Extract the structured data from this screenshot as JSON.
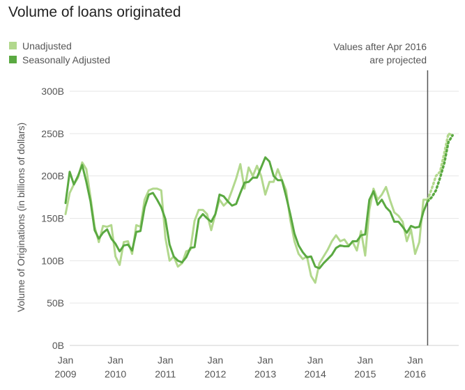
{
  "chart_data": {
    "type": "line",
    "title": "Volume of loans originated",
    "ylabel": "Volume of Originations (in billions of dollars)",
    "xlabel": "",
    "ylim": [
      0,
      300
    ],
    "y_ticks": [
      0,
      50,
      100,
      150,
      200,
      250,
      300
    ],
    "y_tick_labels": [
      "0B",
      "50B",
      "100B",
      "150B",
      "200B",
      "250B",
      "300B"
    ],
    "x_ticks": [
      {
        "date": "2009-01",
        "line1": "Jan",
        "line2": "2009"
      },
      {
        "date": "2010-01",
        "line1": "Jan",
        "line2": "2010"
      },
      {
        "date": "2011-01",
        "line1": "Jan",
        "line2": "2011"
      },
      {
        "date": "2012-01",
        "line1": "Jan",
        "line2": "2012"
      },
      {
        "date": "2013-01",
        "line1": "Jan",
        "line2": "2013"
      },
      {
        "date": "2014-01",
        "line1": "Jan",
        "line2": "2014"
      },
      {
        "date": "2015-01",
        "line1": "Jan",
        "line2": "2015"
      },
      {
        "date": "2016-01",
        "line1": "Jan",
        "line2": "2016"
      }
    ],
    "x_start": "2009-01",
    "x_end": "2016-10",
    "grid": "horizontal",
    "legend_position": "top-left",
    "projection": {
      "date": "2016-04",
      "label_line1": "Values after Apr 2016",
      "label_line2": "are projected"
    },
    "series": [
      {
        "name": "Unadjusted",
        "color": "#b2d88d",
        "values": [
          {
            "date": "2009-01",
            "value": 155
          },
          {
            "date": "2009-02",
            "value": 180
          },
          {
            "date": "2009-03",
            "value": 190
          },
          {
            "date": "2009-04",
            "value": 198
          },
          {
            "date": "2009-05",
            "value": 216
          },
          {
            "date": "2009-06",
            "value": 208
          },
          {
            "date": "2009-07",
            "value": 175
          },
          {
            "date": "2009-08",
            "value": 140
          },
          {
            "date": "2009-09",
            "value": 122
          },
          {
            "date": "2009-10",
            "value": 141
          },
          {
            "date": "2009-11",
            "value": 140
          },
          {
            "date": "2009-12",
            "value": 142
          },
          {
            "date": "2010-01",
            "value": 105
          },
          {
            "date": "2010-02",
            "value": 95
          },
          {
            "date": "2010-03",
            "value": 122
          },
          {
            "date": "2010-04",
            "value": 123
          },
          {
            "date": "2010-05",
            "value": 108
          },
          {
            "date": "2010-06",
            "value": 142
          },
          {
            "date": "2010-07",
            "value": 140
          },
          {
            "date": "2010-08",
            "value": 172
          },
          {
            "date": "2010-09",
            "value": 183
          },
          {
            "date": "2010-10",
            "value": 185
          },
          {
            "date": "2010-11",
            "value": 185
          },
          {
            "date": "2010-12",
            "value": 183
          },
          {
            "date": "2011-01",
            "value": 127
          },
          {
            "date": "2011-02",
            "value": 100
          },
          {
            "date": "2011-03",
            "value": 105
          },
          {
            "date": "2011-04",
            "value": 93
          },
          {
            "date": "2011-05",
            "value": 97
          },
          {
            "date": "2011-06",
            "value": 111
          },
          {
            "date": "2011-07",
            "value": 113
          },
          {
            "date": "2011-08",
            "value": 147
          },
          {
            "date": "2011-09",
            "value": 160
          },
          {
            "date": "2011-10",
            "value": 160
          },
          {
            "date": "2011-11",
            "value": 155
          },
          {
            "date": "2011-12",
            "value": 136
          },
          {
            "date": "2012-01",
            "value": 155
          },
          {
            "date": "2012-02",
            "value": 172
          },
          {
            "date": "2012-03",
            "value": 165
          },
          {
            "date": "2012-04",
            "value": 170
          },
          {
            "date": "2012-05",
            "value": 183
          },
          {
            "date": "2012-06",
            "value": 197
          },
          {
            "date": "2012-07",
            "value": 214
          },
          {
            "date": "2012-08",
            "value": 185
          },
          {
            "date": "2012-09",
            "value": 210
          },
          {
            "date": "2012-10",
            "value": 200
          },
          {
            "date": "2012-11",
            "value": 212
          },
          {
            "date": "2012-12",
            "value": 200
          },
          {
            "date": "2013-01",
            "value": 178
          },
          {
            "date": "2013-02",
            "value": 193
          },
          {
            "date": "2013-03",
            "value": 193
          },
          {
            "date": "2013-04",
            "value": 208
          },
          {
            "date": "2013-05",
            "value": 195
          },
          {
            "date": "2013-06",
            "value": 183
          },
          {
            "date": "2013-07",
            "value": 148
          },
          {
            "date": "2013-08",
            "value": 123
          },
          {
            "date": "2013-09",
            "value": 108
          },
          {
            "date": "2013-10",
            "value": 102
          },
          {
            "date": "2013-11",
            "value": 105
          },
          {
            "date": "2013-12",
            "value": 82
          },
          {
            "date": "2014-01",
            "value": 74
          },
          {
            "date": "2014-02",
            "value": 97
          },
          {
            "date": "2014-03",
            "value": 105
          },
          {
            "date": "2014-04",
            "value": 113
          },
          {
            "date": "2014-05",
            "value": 123
          },
          {
            "date": "2014-06",
            "value": 130
          },
          {
            "date": "2014-07",
            "value": 123
          },
          {
            "date": "2014-08",
            "value": 125
          },
          {
            "date": "2014-09",
            "value": 118
          },
          {
            "date": "2014-10",
            "value": 122
          },
          {
            "date": "2014-11",
            "value": 112
          },
          {
            "date": "2014-12",
            "value": 135
          },
          {
            "date": "2015-01",
            "value": 106
          },
          {
            "date": "2015-02",
            "value": 160
          },
          {
            "date": "2015-03",
            "value": 185
          },
          {
            "date": "2015-04",
            "value": 172
          },
          {
            "date": "2015-05",
            "value": 178
          },
          {
            "date": "2015-06",
            "value": 187
          },
          {
            "date": "2015-07",
            "value": 171
          },
          {
            "date": "2015-08",
            "value": 157
          },
          {
            "date": "2015-09",
            "value": 153
          },
          {
            "date": "2015-10",
            "value": 146
          },
          {
            "date": "2015-11",
            "value": 123
          },
          {
            "date": "2015-12",
            "value": 137
          },
          {
            "date": "2016-01",
            "value": 108
          },
          {
            "date": "2016-02",
            "value": 122
          },
          {
            "date": "2016-03",
            "value": 172
          },
          {
            "date": "2016-04",
            "value": 172
          }
        ]
      },
      {
        "name": "Seasonally Adjusted",
        "color": "#5aa941",
        "values": [
          {
            "date": "2009-01",
            "value": 168
          },
          {
            "date": "2009-02",
            "value": 205
          },
          {
            "date": "2009-03",
            "value": 190
          },
          {
            "date": "2009-04",
            "value": 200
          },
          {
            "date": "2009-05",
            "value": 213
          },
          {
            "date": "2009-06",
            "value": 193
          },
          {
            "date": "2009-07",
            "value": 170
          },
          {
            "date": "2009-08",
            "value": 136
          },
          {
            "date": "2009-09",
            "value": 126
          },
          {
            "date": "2009-10",
            "value": 133
          },
          {
            "date": "2009-11",
            "value": 137
          },
          {
            "date": "2009-12",
            "value": 126
          },
          {
            "date": "2010-01",
            "value": 120
          },
          {
            "date": "2010-02",
            "value": 111
          },
          {
            "date": "2010-03",
            "value": 118
          },
          {
            "date": "2010-04",
            "value": 119
          },
          {
            "date": "2010-05",
            "value": 112
          },
          {
            "date": "2010-06",
            "value": 134
          },
          {
            "date": "2010-07",
            "value": 135
          },
          {
            "date": "2010-08",
            "value": 163
          },
          {
            "date": "2010-09",
            "value": 178
          },
          {
            "date": "2010-10",
            "value": 180
          },
          {
            "date": "2010-11",
            "value": 172
          },
          {
            "date": "2010-12",
            "value": 163
          },
          {
            "date": "2011-01",
            "value": 149
          },
          {
            "date": "2011-02",
            "value": 119
          },
          {
            "date": "2011-03",
            "value": 105
          },
          {
            "date": "2011-04",
            "value": 100
          },
          {
            "date": "2011-05",
            "value": 98
          },
          {
            "date": "2011-06",
            "value": 104
          },
          {
            "date": "2011-07",
            "value": 115
          },
          {
            "date": "2011-08",
            "value": 116
          },
          {
            "date": "2011-09",
            "value": 149
          },
          {
            "date": "2011-10",
            "value": 155
          },
          {
            "date": "2011-11",
            "value": 150
          },
          {
            "date": "2011-12",
            "value": 146
          },
          {
            "date": "2012-01",
            "value": 155
          },
          {
            "date": "2012-02",
            "value": 178
          },
          {
            "date": "2012-03",
            "value": 176
          },
          {
            "date": "2012-04",
            "value": 170
          },
          {
            "date": "2012-05",
            "value": 165
          },
          {
            "date": "2012-06",
            "value": 167
          },
          {
            "date": "2012-07",
            "value": 180
          },
          {
            "date": "2012-08",
            "value": 192
          },
          {
            "date": "2012-09",
            "value": 193
          },
          {
            "date": "2012-10",
            "value": 198
          },
          {
            "date": "2012-11",
            "value": 198
          },
          {
            "date": "2012-12",
            "value": 210
          },
          {
            "date": "2013-01",
            "value": 222
          },
          {
            "date": "2013-02",
            "value": 217
          },
          {
            "date": "2013-03",
            "value": 200
          },
          {
            "date": "2013-04",
            "value": 195
          },
          {
            "date": "2013-05",
            "value": 195
          },
          {
            "date": "2013-06",
            "value": 176
          },
          {
            "date": "2013-07",
            "value": 155
          },
          {
            "date": "2013-08",
            "value": 132
          },
          {
            "date": "2013-09",
            "value": 118
          },
          {
            "date": "2013-10",
            "value": 110
          },
          {
            "date": "2013-11",
            "value": 104
          },
          {
            "date": "2013-12",
            "value": 105
          },
          {
            "date": "2014-01",
            "value": 93
          },
          {
            "date": "2014-02",
            "value": 91
          },
          {
            "date": "2014-03",
            "value": 97
          },
          {
            "date": "2014-04",
            "value": 102
          },
          {
            "date": "2014-05",
            "value": 107
          },
          {
            "date": "2014-06",
            "value": 115
          },
          {
            "date": "2014-07",
            "value": 118
          },
          {
            "date": "2014-08",
            "value": 117
          },
          {
            "date": "2014-09",
            "value": 117
          },
          {
            "date": "2014-10",
            "value": 123
          },
          {
            "date": "2014-11",
            "value": 123
          },
          {
            "date": "2014-12",
            "value": 130
          },
          {
            "date": "2015-01",
            "value": 131
          },
          {
            "date": "2015-02",
            "value": 172
          },
          {
            "date": "2015-03",
            "value": 182
          },
          {
            "date": "2015-04",
            "value": 166
          },
          {
            "date": "2015-05",
            "value": 172
          },
          {
            "date": "2015-06",
            "value": 163
          },
          {
            "date": "2015-07",
            "value": 158
          },
          {
            "date": "2015-08",
            "value": 146
          },
          {
            "date": "2015-09",
            "value": 146
          },
          {
            "date": "2015-10",
            "value": 140
          },
          {
            "date": "2015-11",
            "value": 133
          },
          {
            "date": "2015-12",
            "value": 141
          },
          {
            "date": "2016-01",
            "value": 139
          },
          {
            "date": "2016-02",
            "value": 140
          },
          {
            "date": "2016-03",
            "value": 158
          },
          {
            "date": "2016-04",
            "value": 170
          }
        ]
      }
    ],
    "projected_series": [
      {
        "name": "Unadjusted",
        "color": "#b2d88d",
        "values": [
          {
            "date": "2016-04",
            "value": 172
          },
          {
            "date": "2016-05",
            "value": 185
          },
          {
            "date": "2016-06",
            "value": 200
          },
          {
            "date": "2016-07",
            "value": 205
          },
          {
            "date": "2016-08",
            "value": 227
          },
          {
            "date": "2016-09",
            "value": 250
          },
          {
            "date": "2016-10",
            "value": 248
          }
        ]
      },
      {
        "name": "Seasonally Adjusted",
        "color": "#5aa941",
        "values": [
          {
            "date": "2016-04",
            "value": 170
          },
          {
            "date": "2016-05",
            "value": 175
          },
          {
            "date": "2016-06",
            "value": 183
          },
          {
            "date": "2016-07",
            "value": 198
          },
          {
            "date": "2016-08",
            "value": 215
          },
          {
            "date": "2016-09",
            "value": 240
          },
          {
            "date": "2016-10",
            "value": 248
          }
        ]
      }
    ]
  }
}
